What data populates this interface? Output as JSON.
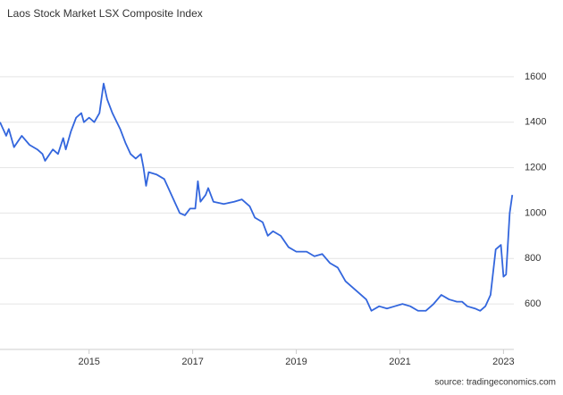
{
  "chart_data": {
    "type": "line",
    "title": "Laos Stock Market LSX Composite Index",
    "source": "source: tradingeconomics.com",
    "color": "#3366dd",
    "x": [
      2013.28,
      2013.4,
      2013.45,
      2013.55,
      2013.7,
      2013.85,
      2014.0,
      2014.1,
      2014.15,
      2014.3,
      2014.4,
      2014.5,
      2014.55,
      2014.65,
      2014.75,
      2014.85,
      2014.9,
      2015.0,
      2015.1,
      2015.2,
      2015.28,
      2015.35,
      2015.45,
      2015.6,
      2015.7,
      2015.8,
      2015.9,
      2016.0,
      2016.05,
      2016.1,
      2016.15,
      2016.3,
      2016.45,
      2016.55,
      2016.65,
      2016.75,
      2016.85,
      2016.95,
      2017.05,
      2017.1,
      2017.15,
      2017.25,
      2017.3,
      2017.4,
      2017.6,
      2017.8,
      2017.95,
      2018.1,
      2018.2,
      2018.35,
      2018.45,
      2018.55,
      2018.7,
      2018.85,
      2019.0,
      2019.2,
      2019.35,
      2019.5,
      2019.65,
      2019.8,
      2019.95,
      2020.1,
      2020.25,
      2020.35,
      2020.45,
      2020.6,
      2020.75,
      2020.9,
      2021.05,
      2021.2,
      2021.35,
      2021.5,
      2021.65,
      2021.8,
      2021.95,
      2022.1,
      2022.2,
      2022.3,
      2022.45,
      2022.55,
      2022.65,
      2022.75,
      2022.85,
      2022.95,
      2023.0,
      2023.05,
      2023.12,
      2023.17
    ],
    "values": [
      1400,
      1340,
      1370,
      1290,
      1340,
      1300,
      1280,
      1260,
      1230,
      1280,
      1260,
      1330,
      1280,
      1360,
      1420,
      1440,
      1400,
      1420,
      1400,
      1440,
      1570,
      1500,
      1440,
      1370,
      1310,
      1260,
      1240,
      1260,
      1200,
      1120,
      1180,
      1170,
      1150,
      1100,
      1050,
      1000,
      990,
      1020,
      1020,
      1140,
      1050,
      1080,
      1110,
      1050,
      1040,
      1050,
      1060,
      1030,
      980,
      960,
      900,
      920,
      900,
      850,
      830,
      830,
      810,
      820,
      780,
      760,
      700,
      670,
      640,
      620,
      570,
      590,
      580,
      590,
      600,
      590,
      570,
      570,
      600,
      640,
      620,
      610,
      610,
      590,
      580,
      570,
      590,
      640,
      840,
      860,
      720,
      730,
      1000,
      1080
    ],
    "xlim": [
      2013.28,
      2023.2
    ],
    "xticks": [
      2015,
      2017,
      2019,
      2021,
      2023
    ],
    "ylim": [
      400,
      1800
    ],
    "yticks": [
      600,
      800,
      1000,
      1200,
      1400,
      1600
    ],
    "grid": true
  }
}
